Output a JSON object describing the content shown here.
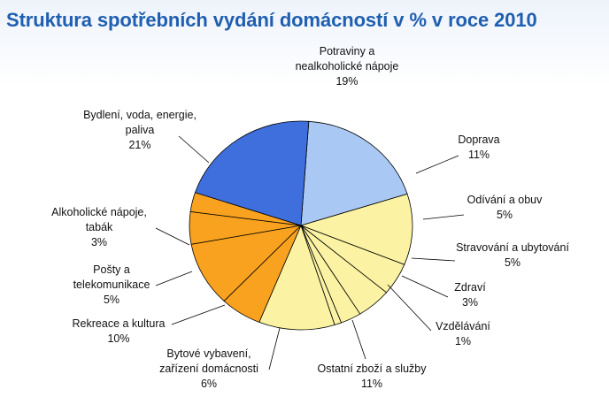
{
  "chart_data": {
    "type": "pie",
    "title": "Struktura spotřebních vydání domácností v % v roce 2010",
    "legend": "none",
    "slices": [
      {
        "label": [
          "Potraviny a",
          "nealkoholické nápoje"
        ],
        "pct_label": "19%",
        "value": 19,
        "color": "#a9c9f4"
      },
      {
        "label": [
          "Doprava"
        ],
        "pct_label": "11%",
        "value": 11,
        "color": "#fbf3a3"
      },
      {
        "label": [
          "Odívání a obuv"
        ],
        "pct_label": "5%",
        "value": 5,
        "color": "#fbf3a3"
      },
      {
        "label": [
          "Stravování a ubytování"
        ],
        "pct_label": "5%",
        "value": 5,
        "color": "#fbf3a3"
      },
      {
        "label": [
          "Zdraví"
        ],
        "pct_label": "3%",
        "value": 3,
        "color": "#fbf3a3"
      },
      {
        "label": [
          "Vzdělávání"
        ],
        "pct_label": "1%",
        "value": 1,
        "color": "#fbf3a3"
      },
      {
        "label": [
          "Ostatní zboží a služby"
        ],
        "pct_label": "11%",
        "value": 11,
        "color": "#fbf3a3"
      },
      {
        "label": [
          "Bytové vybavení,",
          "zařízení domácnosti"
        ],
        "pct_label": "6%",
        "value": 6,
        "color": "#f8a21f"
      },
      {
        "label": [
          "Rekreace a kultura"
        ],
        "pct_label": "10%",
        "value": 10,
        "color": "#f8a21f"
      },
      {
        "label": [
          "Pošty a",
          "telekomunikace"
        ],
        "pct_label": "5%",
        "value": 5,
        "color": "#f8a21f"
      },
      {
        "label": [
          "Alkoholické nápoje,",
          "tabák"
        ],
        "pct_label": "3%",
        "value": 3,
        "color": "#f8a21f"
      },
      {
        "label": [
          "Bydlení, voda, energie,",
          "paliva"
        ],
        "pct_label": "21%",
        "value": 21,
        "color": "#3f6fdc"
      }
    ]
  }
}
